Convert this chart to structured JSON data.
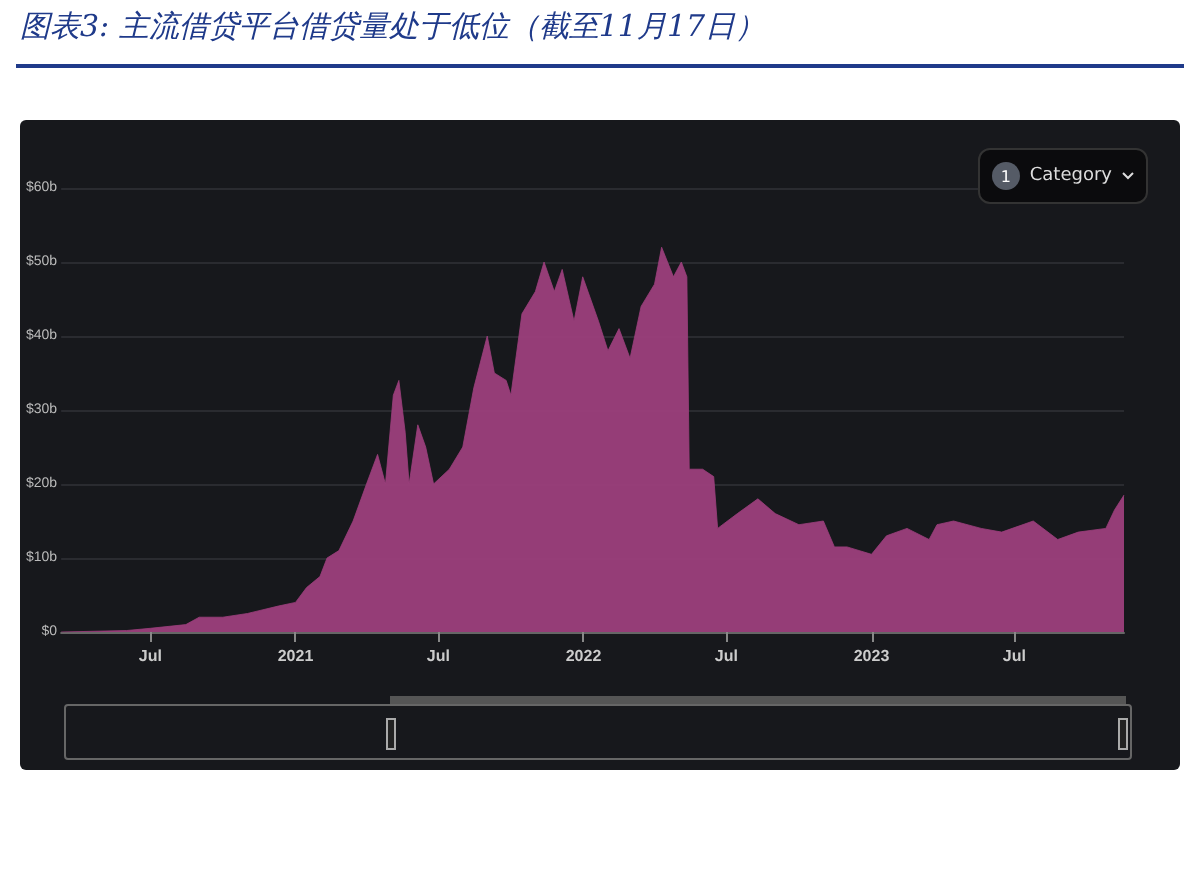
{
  "chart_data": {
    "type": "area",
    "title": "图表3:  主流借贷平台借贷量处于低位（截至11月17日）",
    "annotations": [
      "1",
      "Category"
    ],
    "x": [
      "2020-03-10",
      "2020-06-01",
      "2020-07-01",
      "2020-08-15",
      "2020-09-01",
      "2020-10-01",
      "2020-11-01",
      "2020-12-10",
      "2021-01-01",
      "2021-01-15",
      "2021-02-01",
      "2021-02-10",
      "2021-02-25",
      "2021-03-15",
      "2021-04-01",
      "2021-04-15",
      "2021-04-25",
      "2021-05-05",
      "2021-05-12",
      "2021-05-20",
      "2021-05-25",
      "2021-06-05",
      "2021-06-15",
      "2021-06-25",
      "2021-07-15",
      "2021-08-01",
      "2021-08-15",
      "2021-09-01",
      "2021-09-10",
      "2021-09-25",
      "2021-10-01",
      "2021-10-15",
      "2021-11-01",
      "2021-11-12",
      "2021-11-25",
      "2021-12-05",
      "2021-12-20",
      "2021-12-31",
      "2022-01-20",
      "2022-02-01",
      "2022-02-15",
      "2022-03-01",
      "2022-03-15",
      "2022-04-01",
      "2022-04-10",
      "2022-04-25",
      "2022-05-05",
      "2022-05-12",
      "2022-05-15",
      "2022-06-01",
      "2022-06-15",
      "2022-06-20",
      "2022-07-15",
      "2022-08-10",
      "2022-09-01",
      "2022-10-01",
      "2022-11-01",
      "2022-11-15",
      "2022-12-01",
      "2023-01-01",
      "2023-01-20",
      "2023-02-15",
      "2023-03-15",
      "2023-03-25",
      "2023-04-15",
      "2023-05-20",
      "2023-06-15",
      "2023-07-25",
      "2023-08-25",
      "2023-09-20",
      "2023-10-25",
      "2023-11-05",
      "2023-11-17"
    ],
    "series": [
      {
        "color": "#9c3f7c",
        "values": [
          0,
          0.2,
          0.5,
          1,
          2,
          2,
          2.5,
          3.5,
          4,
          6,
          7.5,
          10,
          11,
          15,
          20,
          24,
          20,
          32,
          34,
          27,
          20,
          28,
          25,
          20,
          22,
          25,
          33,
          40,
          35,
          34,
          32,
          43,
          46,
          50,
          46,
          49,
          42,
          48,
          42,
          38,
          41,
          37,
          44,
          47,
          52,
          48,
          50,
          48,
          22,
          22,
          21,
          14,
          16,
          18,
          16,
          14.5,
          15,
          11.5,
          11.5,
          10.5,
          13,
          14,
          12.5,
          14.5,
          15,
          14,
          13.5,
          15,
          12.5,
          13.5,
          14,
          16.5,
          18.5
        ]
      }
    ],
    "xlim": [
      "2020-03-10",
      "2023-11-17"
    ],
    "xticks": [
      {
        "value": "2020-07-01",
        "label": "Jul"
      },
      {
        "value": "2021-01-01",
        "label": "2021"
      },
      {
        "value": "2021-07-01",
        "label": "Jul"
      },
      {
        "value": "2022-01-01",
        "label": "2022"
      },
      {
        "value": "2022-07-01",
        "label": "Jul"
      },
      {
        "value": "2023-01-01",
        "label": "2023"
      },
      {
        "value": "2023-07-01",
        "label": "Jul"
      }
    ],
    "ylim": [
      0,
      60
    ],
    "yticks": [
      {
        "value": 0,
        "label": "$0"
      },
      {
        "value": 10,
        "label": "$10b"
      },
      {
        "value": 20,
        "label": "$20b"
      },
      {
        "value": 30,
        "label": "$30b"
      },
      {
        "value": 40,
        "label": "$40b"
      },
      {
        "value": 50,
        "label": "$50b"
      },
      {
        "value": 60,
        "label": "$60b"
      }
    ],
    "grid": "y",
    "marker": "none"
  }
}
